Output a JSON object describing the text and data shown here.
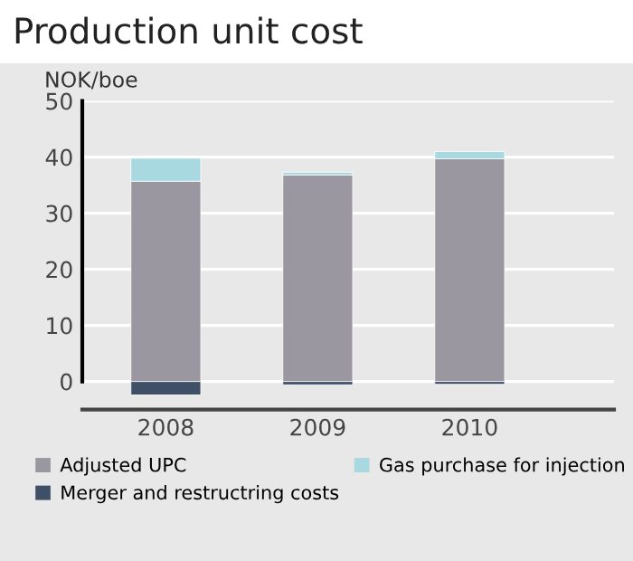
{
  "chart_data": {
    "type": "bar",
    "title": "Production unit cost",
    "ylabel": "NOK/boe",
    "stacked": true,
    "categories": [
      "2008",
      "2009",
      "2010"
    ],
    "series": [
      {
        "name": "Adjusted UPC",
        "color": "#9a97a0",
        "values": [
          35.7,
          36.8,
          39.7
        ]
      },
      {
        "name": "Gas purchase for injection",
        "color": "#a8d8e0",
        "values": [
          4.1,
          0.5,
          1.3
        ]
      },
      {
        "name": "Merger and restructring costs",
        "color": "#3e4f66",
        "values": [
          -2.4,
          -0.6,
          -0.5
        ]
      }
    ],
    "ylim": [
      -5,
      50
    ],
    "yticks": [
      0,
      10,
      20,
      30,
      40,
      50
    ],
    "grid": "y",
    "legend": "bottom"
  }
}
